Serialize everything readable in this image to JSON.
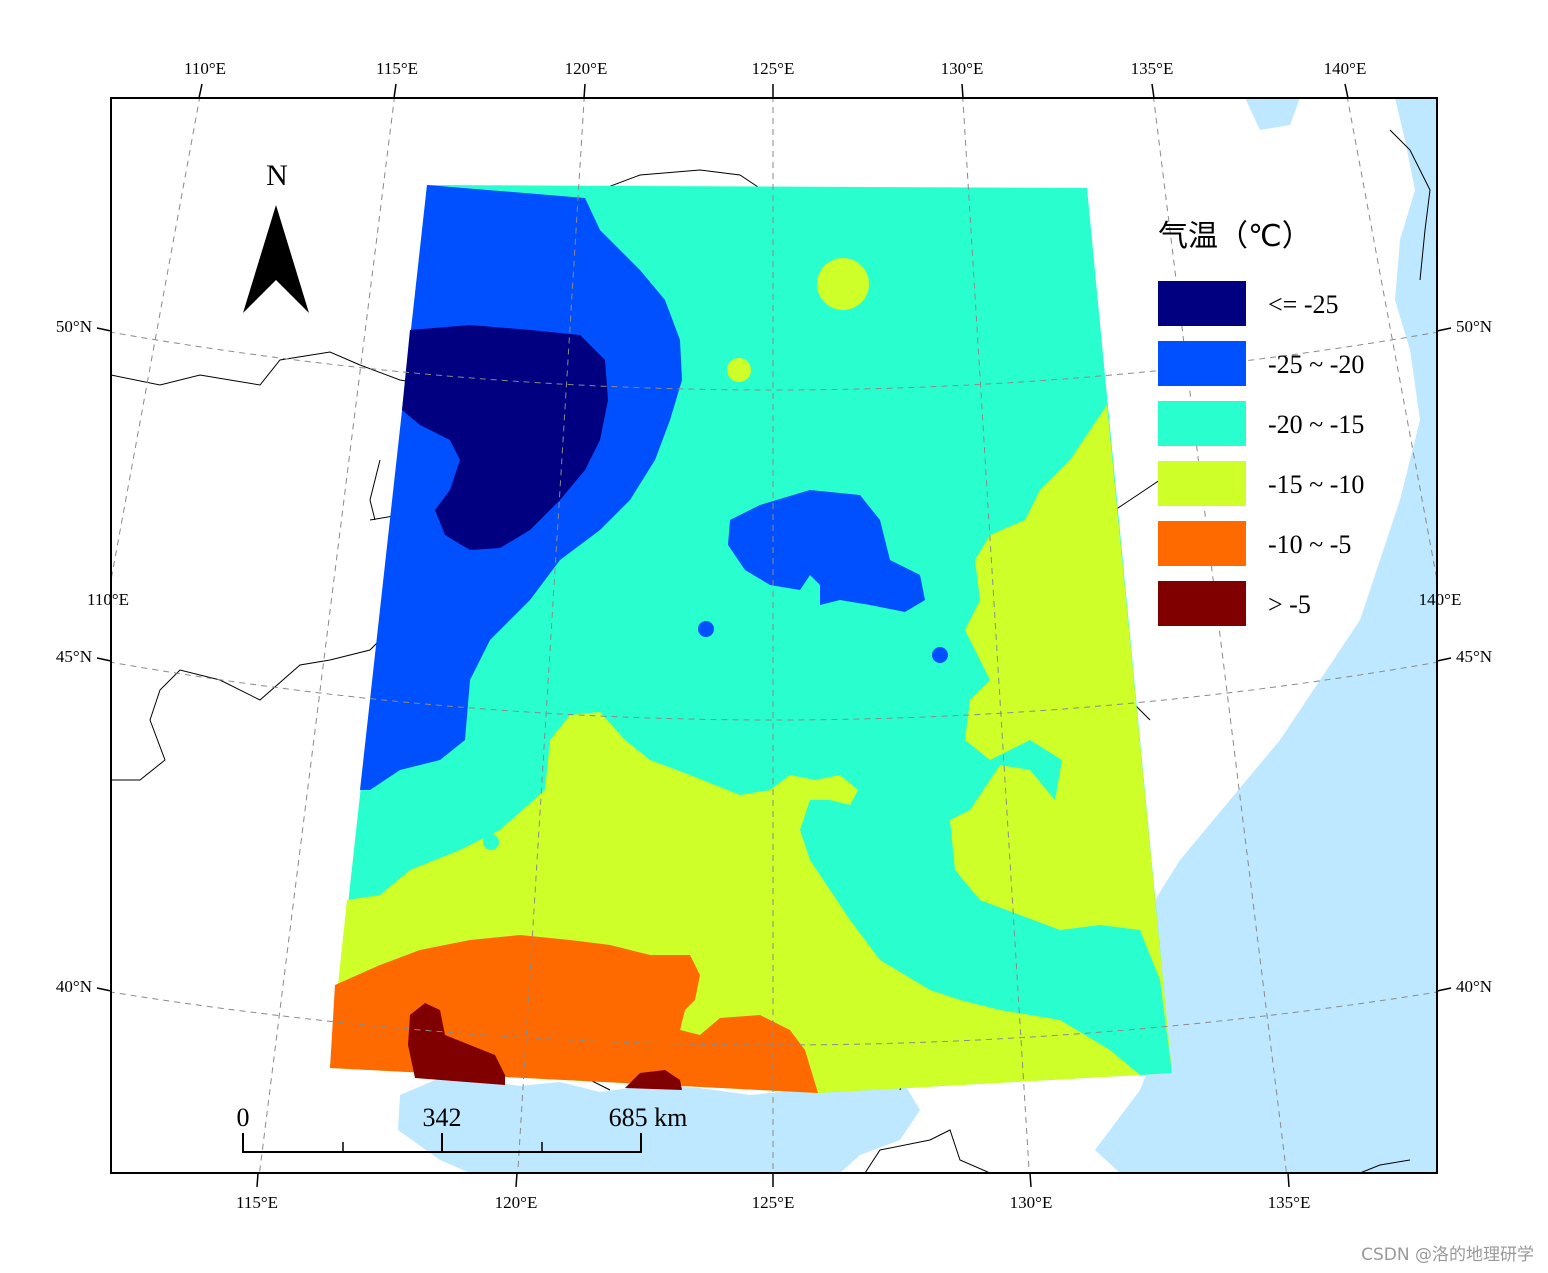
{
  "graticule": {
    "top_lon": [
      "110°E",
      "115°E",
      "120°E",
      "125°E",
      "130°E",
      "135°E",
      "140°E"
    ],
    "bottom_lon": [
      "115°E",
      "120°E",
      "125°E",
      "130°E",
      "135°E"
    ],
    "left_lon": "110°E",
    "right_lon": "140°E",
    "left_lat": [
      "50°N",
      "45°N",
      "40°N"
    ],
    "right_lat": [
      "50°N",
      "45°N",
      "40°N"
    ]
  },
  "north_arrow": {
    "label": "N"
  },
  "legend": {
    "title": "气温（℃）",
    "items": [
      {
        "label": "<= -25",
        "color": "#000080"
      },
      {
        "label": "-25 ~ -20",
        "color": "#0050ff"
      },
      {
        "label": "-20 ~ -15",
        "color": "#29ffce"
      },
      {
        "label": "-15 ~ -10",
        "color": "#ceff29"
      },
      {
        "label": "-10 ~ -5",
        "color": "#ff6a00"
      },
      {
        "label": "> -5",
        "color": "#800000"
      }
    ]
  },
  "scale_bar": {
    "labels": [
      "0",
      "342",
      "685 km"
    ]
  },
  "colors": {
    "sea": "#bee8ff",
    "land": "#ffffff",
    "frame": "#000000",
    "graticule": "#8a8a8a"
  },
  "watermark": "CSDN @洛的地理研学"
}
